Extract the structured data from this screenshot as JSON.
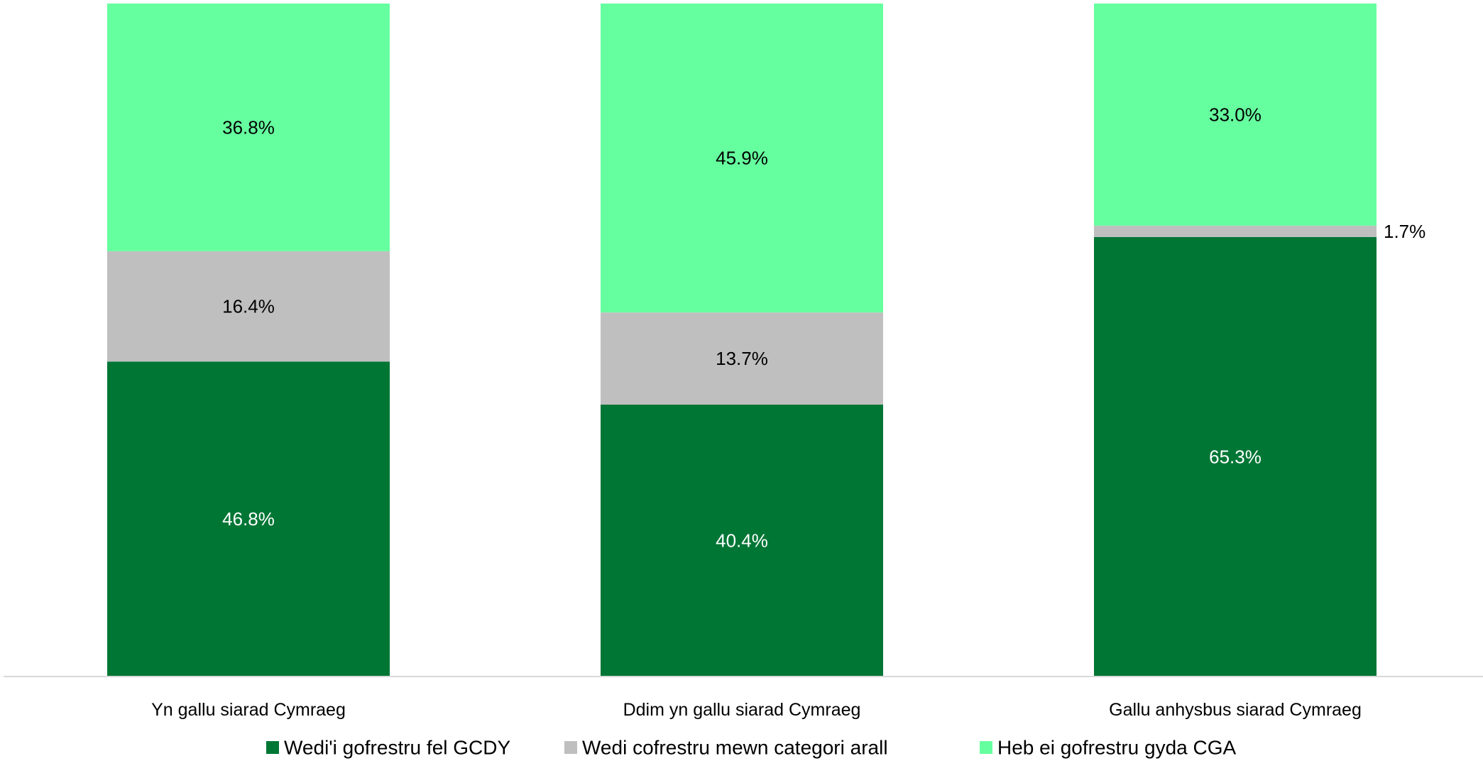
{
  "chart_data": {
    "type": "bar",
    "stacked": true,
    "percent_stacked": true,
    "categories": [
      "Yn gallu siarad Cymraeg",
      "Ddim yn gallu siarad Cymraeg",
      "Gallu anhysbus siarad Cymraeg"
    ],
    "series": [
      {
        "name": "Wedi'i gofrestru fel GCDY",
        "color": "#007635",
        "label_color": "#ffffff",
        "values": [
          46.8,
          40.4,
          65.3
        ],
        "labels": [
          "46.8%",
          "40.4%",
          "65.3%"
        ]
      },
      {
        "name": "Wedi cofrestru mewn categori arall",
        "color": "#bfbfbf",
        "label_color": "#000000",
        "values": [
          16.4,
          13.7,
          1.7
        ],
        "labels": [
          "16.4%",
          "13.7%",
          "1.7%"
        ]
      },
      {
        "name": "Heb ei gofrestru gyda CGA",
        "color": "#66ff9f",
        "label_color": "#000000",
        "values": [
          36.8,
          45.9,
          33.0
        ],
        "labels": [
          "36.8%",
          "45.9%",
          "33.0%"
        ]
      }
    ],
    "ylim": [
      0,
      100
    ],
    "grid": false,
    "legend_position": "bottom",
    "title": "",
    "xlabel": "",
    "ylabel": ""
  }
}
